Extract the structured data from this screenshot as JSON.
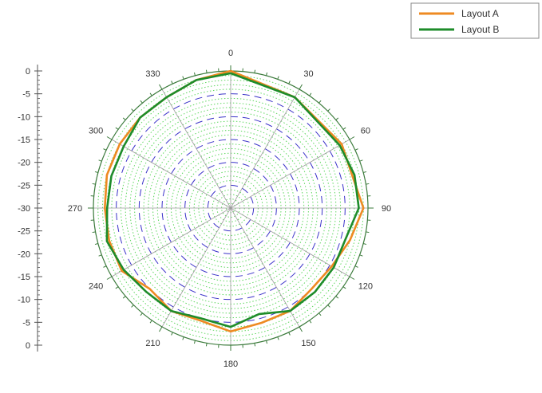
{
  "chart_data": {
    "type": "line",
    "subtype": "polar",
    "title": "",
    "angle_unit": "degrees",
    "angle_ticks": [
      "0",
      "30",
      "60",
      "90",
      "120",
      "150",
      "180",
      "210",
      "240",
      "270",
      "300",
      "330"
    ],
    "radial_scale": {
      "center_value": -30,
      "outer_value": 0,
      "major_step": 5
    },
    "radial_tick_labels": [
      "0",
      "-5",
      "-10",
      "-15",
      "-20",
      "-25",
      "-30",
      "-25",
      "-20",
      "-15",
      "-10",
      "-5",
      "0"
    ],
    "grid": true,
    "legend_position": "top-right",
    "series": [
      {
        "name": "Layout A",
        "color": "#ee8a22",
        "angles": [
          0,
          30,
          60,
          75,
          90,
          105,
          120,
          135,
          150,
          165,
          180,
          195,
          210,
          225,
          240,
          255,
          270,
          285,
          300,
          315,
          330,
          345,
          360
        ],
        "values": [
          0,
          -2,
          -2,
          -2.5,
          -1,
          -3,
          -4.5,
          -5,
          -4,
          -4,
          -3,
          -4.5,
          -4,
          -5,
          -2.5,
          -2.5,
          -2.5,
          -2,
          -2,
          -2,
          -2,
          -1,
          0
        ]
      },
      {
        "name": "Layout B",
        "color": "#1e8c2a",
        "angles": [
          0,
          30,
          60,
          75,
          90,
          105,
          120,
          135,
          150,
          165,
          180,
          195,
          210,
          225,
          240,
          255,
          270,
          285,
          300,
          315,
          330,
          345,
          360
        ],
        "values": [
          -0.5,
          -2,
          -2.5,
          -2,
          -2,
          -4,
          -4,
          -4,
          -4,
          -6,
          -4,
          -5,
          -4,
          -4,
          -3,
          -2,
          -3,
          -3,
          -3,
          -2,
          -2,
          -1,
          -0.5
        ]
      }
    ],
    "colors": {
      "outer_circle": "#3a7a3a",
      "major_grid": "#3a32c8",
      "minor_grid": "#5fd85f",
      "spokes": "#9a9a9a",
      "axis": "#555555",
      "legend_border": "#888888"
    }
  }
}
